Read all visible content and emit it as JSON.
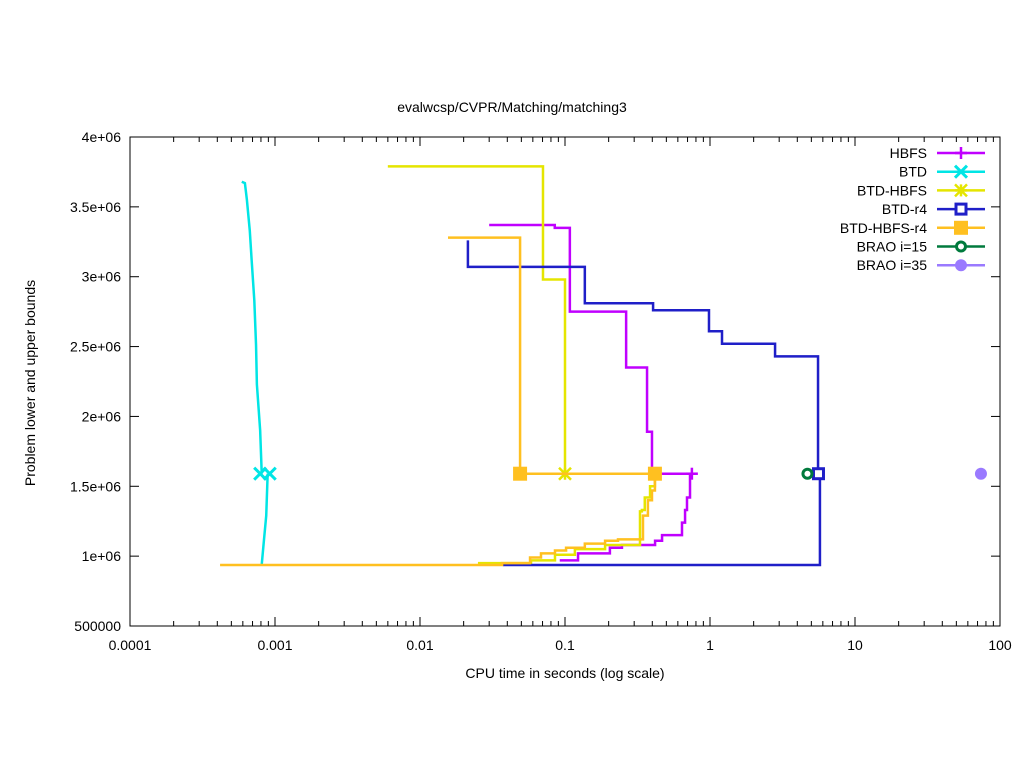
{
  "chart_data": {
    "type": "line",
    "title": "evalwcsp/CVPR/Matching/matching3",
    "xlabel": "CPU time in seconds (log scale)",
    "ylabel": "Problem lower and upper bounds",
    "xscale": "log",
    "xlim": [
      0.0001,
      100
    ],
    "ylim": [
      500000,
      4000000
    ],
    "xticks": [
      {
        "v": 0.0001,
        "label": "0.0001"
      },
      {
        "v": 0.001,
        "label": "0.001"
      },
      {
        "v": 0.01,
        "label": "0.01"
      },
      {
        "v": 0.1,
        "label": "0.1"
      },
      {
        "v": 1,
        "label": "1"
      },
      {
        "v": 10,
        "label": "10"
      },
      {
        "v": 100,
        "label": "100"
      }
    ],
    "yticks": [
      {
        "v": 500000,
        "label": "500000"
      },
      {
        "v": 1000000,
        "label": "1e+06"
      },
      {
        "v": 1500000,
        "label": "1.5e+06"
      },
      {
        "v": 2000000,
        "label": "2e+06"
      },
      {
        "v": 2500000,
        "label": "2.5e+06"
      },
      {
        "v": 3000000,
        "label": "3e+06"
      },
      {
        "v": 3500000,
        "label": "3.5e+06"
      },
      {
        "v": 4000000,
        "label": "4e+06"
      }
    ],
    "grid": false,
    "legend_position": "top-right",
    "series": [
      {
        "name": "HBFS",
        "color": "#c000ff",
        "marker": "plus",
        "upper": [
          [
            0.03,
            3370000
          ],
          [
            0.085,
            3370000
          ],
          [
            0.085,
            3350000
          ],
          [
            0.108,
            3350000
          ],
          [
            0.108,
            2750000
          ],
          [
            0.264,
            2750000
          ],
          [
            0.264,
            2350000
          ],
          [
            0.368,
            2350000
          ],
          [
            0.368,
            1890000
          ],
          [
            0.398,
            1890000
          ],
          [
            0.398,
            1590000
          ],
          [
            0.79,
            1590000
          ]
        ],
        "lower": [
          [
            0.092,
            970000
          ],
          [
            0.123,
            970000
          ],
          [
            0.123,
            1020000
          ],
          [
            0.204,
            1020000
          ],
          [
            0.204,
            1060000
          ],
          [
            0.247,
            1060000
          ],
          [
            0.247,
            1080000
          ],
          [
            0.418,
            1080000
          ],
          [
            0.418,
            1110000
          ],
          [
            0.467,
            1110000
          ],
          [
            0.467,
            1150000
          ],
          [
            0.641,
            1150000
          ],
          [
            0.641,
            1240000
          ],
          [
            0.673,
            1240000
          ],
          [
            0.673,
            1330000
          ],
          [
            0.694,
            1330000
          ],
          [
            0.694,
            1420000
          ],
          [
            0.728,
            1420000
          ],
          [
            0.728,
            1590000
          ]
        ],
        "markers": [
          [
            0.75,
            1590000
          ]
        ]
      },
      {
        "name": "BTD",
        "color": "#00e5e5",
        "marker": "x",
        "upper": [
          [
            0.00059,
            3680000
          ],
          [
            0.00062,
            3670000
          ],
          [
            0.00064,
            3550000
          ],
          [
            0.00067,
            3330000
          ],
          [
            0.00069,
            3120000
          ],
          [
            0.00072,
            2830000
          ],
          [
            0.00074,
            2510000
          ],
          [
            0.00075,
            2230000
          ],
          [
            0.00079,
            1900000
          ],
          [
            0.00081,
            1590000
          ]
        ],
        "lower": [
          [
            0.00081,
            940000
          ],
          [
            0.00084,
            1120000
          ],
          [
            0.00087,
            1290000
          ],
          [
            0.00089,
            1590000
          ]
        ],
        "markers": [
          [
            0.00079,
            1590000
          ],
          [
            0.00092,
            1590000
          ]
        ]
      },
      {
        "name": "BTD-HBFS",
        "color": "#e5e500",
        "marker": "star",
        "upper": [
          [
            0.006,
            3790000
          ],
          [
            0.0705,
            3790000
          ],
          [
            0.0705,
            2980000
          ],
          [
            0.1,
            2980000
          ],
          [
            0.1,
            1590000
          ]
        ],
        "lower": [
          [
            0.0251,
            950000
          ],
          [
            0.0583,
            950000
          ],
          [
            0.0583,
            970000
          ],
          [
            0.0853,
            970000
          ],
          [
            0.0853,
            1010000
          ],
          [
            0.117,
            1010000
          ],
          [
            0.117,
            1050000
          ],
          [
            0.189,
            1050000
          ],
          [
            0.189,
            1080000
          ],
          [
            0.329,
            1080000
          ],
          [
            0.329,
            1320000
          ],
          [
            0.339,
            1320000
          ],
          [
            0.339,
            1330000
          ],
          [
            0.355,
            1330000
          ],
          [
            0.355,
            1420000
          ],
          [
            0.386,
            1420000
          ],
          [
            0.386,
            1500000
          ],
          [
            0.417,
            1500000
          ],
          [
            0.417,
            1590000
          ]
        ],
        "markers": [
          [
            0.1,
            1590000
          ],
          [
            0.417,
            1590000
          ]
        ]
      },
      {
        "name": "BTD-r4",
        "color": "#1f1fc8",
        "marker": "square-open",
        "upper": [
          [
            0.0214,
            3260000
          ],
          [
            0.0214,
            3070000
          ],
          [
            0.137,
            3070000
          ],
          [
            0.137,
            2810000
          ],
          [
            0.405,
            2810000
          ],
          [
            0.405,
            2760000
          ],
          [
            0.984,
            2760000
          ],
          [
            0.984,
            2610000
          ],
          [
            1.21,
            2610000
          ],
          [
            1.21,
            2520000
          ],
          [
            2.81,
            2520000
          ],
          [
            2.81,
            2430000
          ],
          [
            5.56,
            2430000
          ],
          [
            5.56,
            1590000
          ]
        ],
        "lower": [
          [
            0.0373,
            937000
          ],
          [
            5.73,
            937000
          ],
          [
            5.73,
            1590000
          ]
        ],
        "markers": [
          [
            5.6,
            1590000
          ]
        ]
      },
      {
        "name": "BTD-HBFS-r4",
        "color": "#ffc020",
        "marker": "square-filled",
        "upper": [
          [
            0.0156,
            3280000
          ],
          [
            0.049,
            3280000
          ],
          [
            0.049,
            1590000
          ],
          [
            0.417,
            1590000
          ]
        ],
        "lower": [
          [
            0.000418,
            937000
          ],
          [
            0.0368,
            937000
          ],
          [
            0.0368,
            950000
          ],
          [
            0.0574,
            950000
          ],
          [
            0.0574,
            990000
          ],
          [
            0.0683,
            990000
          ],
          [
            0.0683,
            1020000
          ],
          [
            0.0853,
            1020000
          ],
          [
            0.0853,
            1040000
          ],
          [
            0.1017,
            1040000
          ],
          [
            0.1017,
            1060000
          ],
          [
            0.137,
            1060000
          ],
          [
            0.137,
            1090000
          ],
          [
            0.189,
            1090000
          ],
          [
            0.189,
            1110000
          ],
          [
            0.232,
            1110000
          ],
          [
            0.232,
            1120000
          ],
          [
            0.345,
            1120000
          ],
          [
            0.345,
            1290000
          ],
          [
            0.373,
            1290000
          ],
          [
            0.373,
            1400000
          ],
          [
            0.398,
            1400000
          ],
          [
            0.398,
            1470000
          ],
          [
            0.417,
            1470000
          ],
          [
            0.417,
            1590000
          ]
        ],
        "markers": [
          [
            0.049,
            1590000
          ],
          [
            0.417,
            1590000
          ]
        ]
      },
      {
        "name": "BRAO i=15",
        "color": "#007a3d",
        "marker": "circle-dot",
        "upper": [],
        "lower": [],
        "markers": [
          [
            4.7,
            1590000
          ]
        ]
      },
      {
        "name": "BRAO i=35",
        "color": "#9a7aff",
        "marker": "circle-filled",
        "upper": [],
        "lower": [],
        "markers": [
          [
            73.9,
            1590000
          ]
        ]
      }
    ]
  }
}
